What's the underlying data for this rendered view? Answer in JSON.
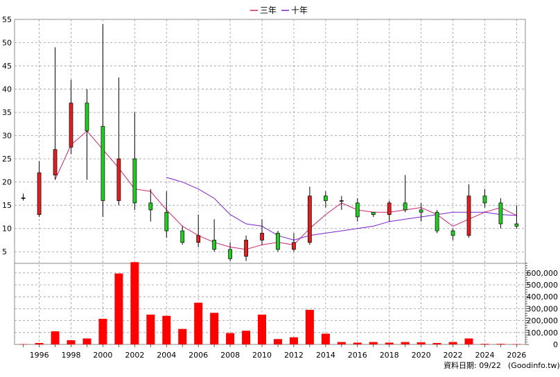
{
  "legend": {
    "items": [
      {
        "label": "三年",
        "color": "#d0206e"
      },
      {
        "label": "十年",
        "color": "#7a1fd0"
      }
    ]
  },
  "footer": {
    "date_label": "資料日期: 09/22",
    "source": "(Goodinfo.tw)"
  },
  "colors": {
    "up": "#e02020",
    "down": "#22cc22",
    "volume": "#ff0000",
    "grid": "#999999"
  },
  "chart_data": [
    {
      "type": "candlestick",
      "title": "",
      "ylim": [
        2.5,
        55
      ],
      "yticks": [
        5,
        10,
        15,
        20,
        25,
        30,
        35,
        40,
        45,
        50,
        55
      ],
      "grid": true,
      "legend_position": "top-center",
      "xticks": [
        1996,
        1998,
        2000,
        2002,
        2004,
        2006,
        2008,
        2010,
        2012,
        2014,
        2016,
        2018,
        2020,
        2022,
        2024,
        2026
      ],
      "candles": [
        {
          "year": 1995,
          "open": 16.5,
          "close": 16.6,
          "high": 17.5,
          "low": 16.0
        },
        {
          "year": 1996,
          "open": 13.0,
          "close": 22.0,
          "high": 24.5,
          "low": 12.5
        },
        {
          "year": 1997,
          "open": 21.5,
          "close": 27.0,
          "high": 49.0,
          "low": 20.5
        },
        {
          "year": 1998,
          "open": 27.5,
          "close": 37.0,
          "high": 42.0,
          "low": 26.0
        },
        {
          "year": 1999,
          "open": 37.0,
          "close": 31.0,
          "high": 40.0,
          "low": 20.5
        },
        {
          "year": 2000,
          "open": 32.0,
          "close": 16.0,
          "high": 54.0,
          "low": 12.5
        },
        {
          "year": 2001,
          "open": 16.0,
          "close": 25.0,
          "high": 42.5,
          "low": 15.0
        },
        {
          "year": 2002,
          "open": 25.0,
          "close": 15.5,
          "high": 35.0,
          "low": 14.0
        },
        {
          "year": 2003,
          "open": 15.5,
          "close": 14.0,
          "high": 18.5,
          "low": 11.5
        },
        {
          "year": 2004,
          "open": 13.5,
          "close": 9.5,
          "high": 18.0,
          "low": 8.0
        },
        {
          "year": 2005,
          "open": 9.5,
          "close": 7.0,
          "high": 10.5,
          "low": 6.5
        },
        {
          "year": 2006,
          "open": 7.0,
          "close": 8.5,
          "high": 13.0,
          "low": 6.0
        },
        {
          "year": 2007,
          "open": 7.5,
          "close": 5.5,
          "high": 12.0,
          "low": 5.0
        },
        {
          "year": 2008,
          "open": 5.5,
          "close": 3.5,
          "high": 7.0,
          "low": 3.0
        },
        {
          "year": 2009,
          "open": 4.0,
          "close": 7.5,
          "high": 8.5,
          "low": 3.0
        },
        {
          "year": 2010,
          "open": 7.5,
          "close": 9.0,
          "high": 12.0,
          "low": 6.5
        },
        {
          "year": 2011,
          "open": 9.0,
          "close": 5.5,
          "high": 9.5,
          "low": 5.0
        },
        {
          "year": 2012,
          "open": 5.5,
          "close": 7.0,
          "high": 9.0,
          "low": 5.0
        },
        {
          "year": 2013,
          "open": 7.0,
          "close": 17.0,
          "high": 19.0,
          "low": 6.5
        },
        {
          "year": 2014,
          "open": 17.0,
          "close": 16.0,
          "high": 18.0,
          "low": 14.5
        },
        {
          "year": 2015,
          "open": 16.0,
          "close": 16.0,
          "high": 17.0,
          "low": 14.0
        },
        {
          "year": 2016,
          "open": 15.5,
          "close": 12.5,
          "high": 16.5,
          "low": 11.5
        },
        {
          "year": 2017,
          "open": 13.5,
          "close": 13.0,
          "high": 13.5,
          "low": 12.5
        },
        {
          "year": 2018,
          "open": 13.0,
          "close": 15.5,
          "high": 16.0,
          "low": 11.5
        },
        {
          "year": 2019,
          "open": 15.5,
          "close": 14.0,
          "high": 21.5,
          "low": 13.5
        },
        {
          "year": 2020,
          "open": 14.0,
          "close": 13.5,
          "high": 15.5,
          "low": 11.5
        },
        {
          "year": 2021,
          "open": 13.5,
          "close": 9.5,
          "high": 14.0,
          "low": 9.0
        },
        {
          "year": 2022,
          "open": 9.5,
          "close": 8.5,
          "high": 10.0,
          "low": 7.5
        },
        {
          "year": 2023,
          "open": 8.5,
          "close": 17.0,
          "high": 19.5,
          "low": 8.0
        },
        {
          "year": 2024,
          "open": 17.0,
          "close": 15.5,
          "high": 18.5,
          "low": 14.5
        },
        {
          "year": 2025,
          "open": 15.5,
          "close": 11.0,
          "high": 16.5,
          "low": 10.0
        },
        {
          "year": 2026,
          "open": 11.0,
          "close": 10.5,
          "high": 15.0,
          "low": 10.0
        }
      ],
      "series": [
        {
          "name": "三年",
          "color": "#d0206e",
          "points": [
            [
              1997,
              20.5
            ],
            [
              1998,
              28.0
            ],
            [
              1999,
              31.0
            ],
            [
              2000,
              27.0
            ],
            [
              2001,
              23.0
            ],
            [
              2002,
              18.5
            ],
            [
              2003,
              18.0
            ],
            [
              2004,
              14.0
            ],
            [
              2005,
              10.5
            ],
            [
              2006,
              8.5
            ],
            [
              2007,
              7.0
            ],
            [
              2008,
              6.0
            ],
            [
              2009,
              5.5
            ],
            [
              2010,
              6.5
            ],
            [
              2011,
              7.0
            ],
            [
              2012,
              6.5
            ],
            [
              2013,
              10.0
            ],
            [
              2014,
              13.0
            ],
            [
              2015,
              15.5
            ],
            [
              2016,
              14.0
            ],
            [
              2017,
              13.5
            ],
            [
              2018,
              13.5
            ],
            [
              2019,
              14.0
            ],
            [
              2020,
              14.5
            ],
            [
              2021,
              13.0
            ],
            [
              2022,
              10.5
            ],
            [
              2023,
              12.0
            ],
            [
              2024,
              13.5
            ],
            [
              2025,
              14.5
            ],
            [
              2026,
              12.8
            ]
          ]
        },
        {
          "name": "十年",
          "color": "#7a1fd0",
          "points": [
            [
              2004,
              21.0
            ],
            [
              2005,
              20.0
            ],
            [
              2006,
              18.5
            ],
            [
              2007,
              16.5
            ],
            [
              2008,
              13.0
            ],
            [
              2009,
              11.0
            ],
            [
              2010,
              10.5
            ],
            [
              2011,
              8.5
            ],
            [
              2012,
              7.5
            ],
            [
              2013,
              8.5
            ],
            [
              2014,
              9.0
            ],
            [
              2015,
              9.5
            ],
            [
              2016,
              10.0
            ],
            [
              2017,
              10.5
            ],
            [
              2018,
              11.5
            ],
            [
              2019,
              12.0
            ],
            [
              2020,
              12.5
            ],
            [
              2021,
              13.0
            ],
            [
              2022,
              13.5
            ],
            [
              2023,
              13.5
            ],
            [
              2024,
              13.5
            ],
            [
              2025,
              13.0
            ],
            [
              2026,
              12.8
            ]
          ]
        }
      ]
    },
    {
      "type": "bar",
      "title": "",
      "ylim": [
        0,
        680000
      ],
      "ytick_labels": [
        "0",
        "100,000",
        "200,000",
        "300,000",
        "400,000",
        "500,000",
        "600,000"
      ],
      "yticks": [
        0,
        100000,
        200000,
        300000,
        400000,
        500000,
        600000
      ],
      "categories": [
        1995,
        1996,
        1997,
        1998,
        1999,
        2000,
        2001,
        2002,
        2003,
        2004,
        2005,
        2006,
        2007,
        2008,
        2009,
        2010,
        2011,
        2012,
        2013,
        2014,
        2015,
        2016,
        2017,
        2018,
        2019,
        2020,
        2021,
        2022,
        2023,
        2024,
        2025,
        2026
      ],
      "values": [
        3000,
        12000,
        110000,
        35000,
        50000,
        215000,
        595000,
        690000,
        250000,
        240000,
        130000,
        350000,
        265000,
        95000,
        115000,
        250000,
        45000,
        60000,
        290000,
        90000,
        20000,
        15000,
        20000,
        15000,
        20000,
        18000,
        12000,
        20000,
        50000,
        5000,
        5000,
        3000
      ]
    }
  ]
}
